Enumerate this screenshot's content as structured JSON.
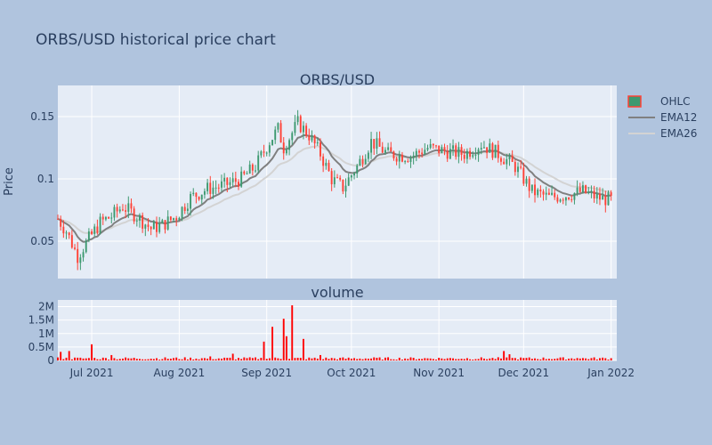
{
  "title": "ORBS/USD historical price chart",
  "colors": {
    "paper": "#b0c4de",
    "plot_bg": "#e5ecf6",
    "increasing": "#3d9970",
    "decreasing": "#ff4136",
    "ema12": "#808080",
    "ema26": "#d3d3d3",
    "volume": "#ff0000"
  },
  "chart_data": [
    {
      "type": "candlestick",
      "subplot_title": "ORBS/USD",
      "ylabel": "Price",
      "xlabel": "",
      "yticks": [
        0.05,
        0.1,
        0.15
      ],
      "ylim": [
        0.02,
        0.175
      ],
      "xlim": [
        "2021-06-19",
        "2022-01-03"
      ],
      "xticks": [
        "2021-07-01",
        "2021-08-01",
        "2021-09-01",
        "2021-10-01",
        "2021-11-01",
        "2021-12-01",
        "2022-01-01"
      ],
      "xtick_labels": [
        "Jul 2021",
        "Aug 2021",
        "Sep 2021",
        "Oct 2021",
        "Nov 2021",
        "Dec 2021",
        "Jan 2022"
      ],
      "grid": true,
      "legend": {
        "placement": "top-right",
        "entries": [
          "OHLC",
          "EMA12",
          "EMA26"
        ]
      },
      "price_anchors": [
        [
          "2021-06-19",
          0.068
        ],
        [
          "2021-06-22",
          0.058
        ],
        [
          "2021-06-26",
          0.038
        ],
        [
          "2021-06-30",
          0.052
        ],
        [
          "2021-07-04",
          0.065
        ],
        [
          "2021-07-08",
          0.07
        ],
        [
          "2021-07-12",
          0.078
        ],
        [
          "2021-07-17",
          0.07
        ],
        [
          "2021-07-22",
          0.06
        ],
        [
          "2021-07-26",
          0.063
        ],
        [
          "2021-07-31",
          0.07
        ],
        [
          "2021-08-05",
          0.085
        ],
        [
          "2021-08-11",
          0.092
        ],
        [
          "2021-08-17",
          0.095
        ],
        [
          "2021-08-23",
          0.1
        ],
        [
          "2021-08-28",
          0.11
        ],
        [
          "2021-09-02",
          0.13
        ],
        [
          "2021-09-05",
          0.14
        ],
        [
          "2021-09-07",
          0.125
        ],
        [
          "2021-09-12",
          0.145
        ],
        [
          "2021-09-16",
          0.135
        ],
        [
          "2021-09-20",
          0.12
        ],
        [
          "2021-09-24",
          0.1
        ],
        [
          "2021-09-28",
          0.093
        ],
        [
          "2021-10-03",
          0.11
        ],
        [
          "2021-10-08",
          0.13
        ],
        [
          "2021-10-14",
          0.12
        ],
        [
          "2021-10-22",
          0.118
        ],
        [
          "2021-10-28",
          0.125
        ],
        [
          "2021-11-04",
          0.122
        ],
        [
          "2021-11-10",
          0.12
        ],
        [
          "2021-11-16",
          0.128
        ],
        [
          "2021-11-22",
          0.12
        ],
        [
          "2021-11-28",
          0.11
        ],
        [
          "2021-12-04",
          0.09
        ],
        [
          "2021-12-10",
          0.085
        ],
        [
          "2021-12-16",
          0.087
        ],
        [
          "2021-12-22",
          0.09
        ],
        [
          "2021-12-27",
          0.085
        ],
        [
          "2022-01-01",
          0.083
        ]
      ],
      "series": [
        {
          "name": "OHLC"
        },
        {
          "name": "EMA12",
          "span": 12
        },
        {
          "name": "EMA26",
          "span": 26
        }
      ]
    },
    {
      "type": "bar",
      "subplot_title": "volume",
      "yticks": [
        0,
        500000,
        1000000,
        1500000,
        2000000
      ],
      "ytick_labels": [
        "0",
        "0.5M",
        "1M",
        "1.5M",
        "2M"
      ],
      "ylim": [
        0,
        2250000
      ],
      "volume_anchors": [
        [
          "2021-06-20",
          320000
        ],
        [
          "2021-06-23",
          350000
        ],
        [
          "2021-07-01",
          600000
        ],
        [
          "2021-07-08",
          200000
        ],
        [
          "2021-08-12",
          150000
        ],
        [
          "2021-08-20",
          250000
        ],
        [
          "2021-08-31",
          700000
        ],
        [
          "2021-09-03",
          1250000
        ],
        [
          "2021-09-07",
          1550000
        ],
        [
          "2021-09-08",
          900000
        ],
        [
          "2021-09-10",
          2050000
        ],
        [
          "2021-09-14",
          800000
        ],
        [
          "2021-09-20",
          200000
        ],
        [
          "2021-10-10",
          100000
        ],
        [
          "2021-11-24",
          350000
        ],
        [
          "2021-11-26",
          230000
        ],
        [
          "2021-12-20",
          90000
        ]
      ]
    }
  ]
}
